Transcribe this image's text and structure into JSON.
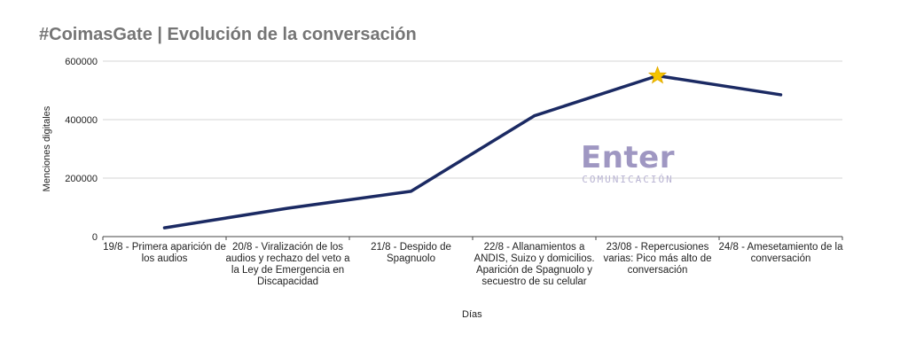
{
  "chart_data": {
    "type": "line",
    "title": "#CoimasGate | Evolución de la conversación",
    "xlabel": "Días",
    "ylabel": "Menciones digitales",
    "ylim": [
      0,
      600000
    ],
    "yticks": [
      0,
      200000,
      400000,
      600000
    ],
    "ytick_labels": [
      "0",
      "200000",
      "400000",
      "600000"
    ],
    "grid": true,
    "categories": [
      "19/8 - Primera aparición de los audios",
      "20/8 - Viralización de los audios y rechazo del veto a la Ley de Emergencia en Discapacidad",
      "21/8 - Despido de Spagnuolo",
      "22/8 - Allanamientos a ANDIS, Suizo y domicilios. Aparición de Spagnuolo y secuestro de su celular",
      "23/08 - Repercusiones varias: Pico más alto de conversación",
      "24/8 - Amesetamiento de la conversación"
    ],
    "series": [
      {
        "values": [
          30000,
          97000,
          155000,
          413000,
          550000,
          485000
        ]
      }
    ],
    "line_color": "#1b2a63",
    "highlight": {
      "category_index": 4,
      "marker": "star-icon",
      "color": "#f4c400"
    }
  },
  "watermark": {
    "main": "Enter",
    "sub": "COMUNICACIÓN"
  }
}
